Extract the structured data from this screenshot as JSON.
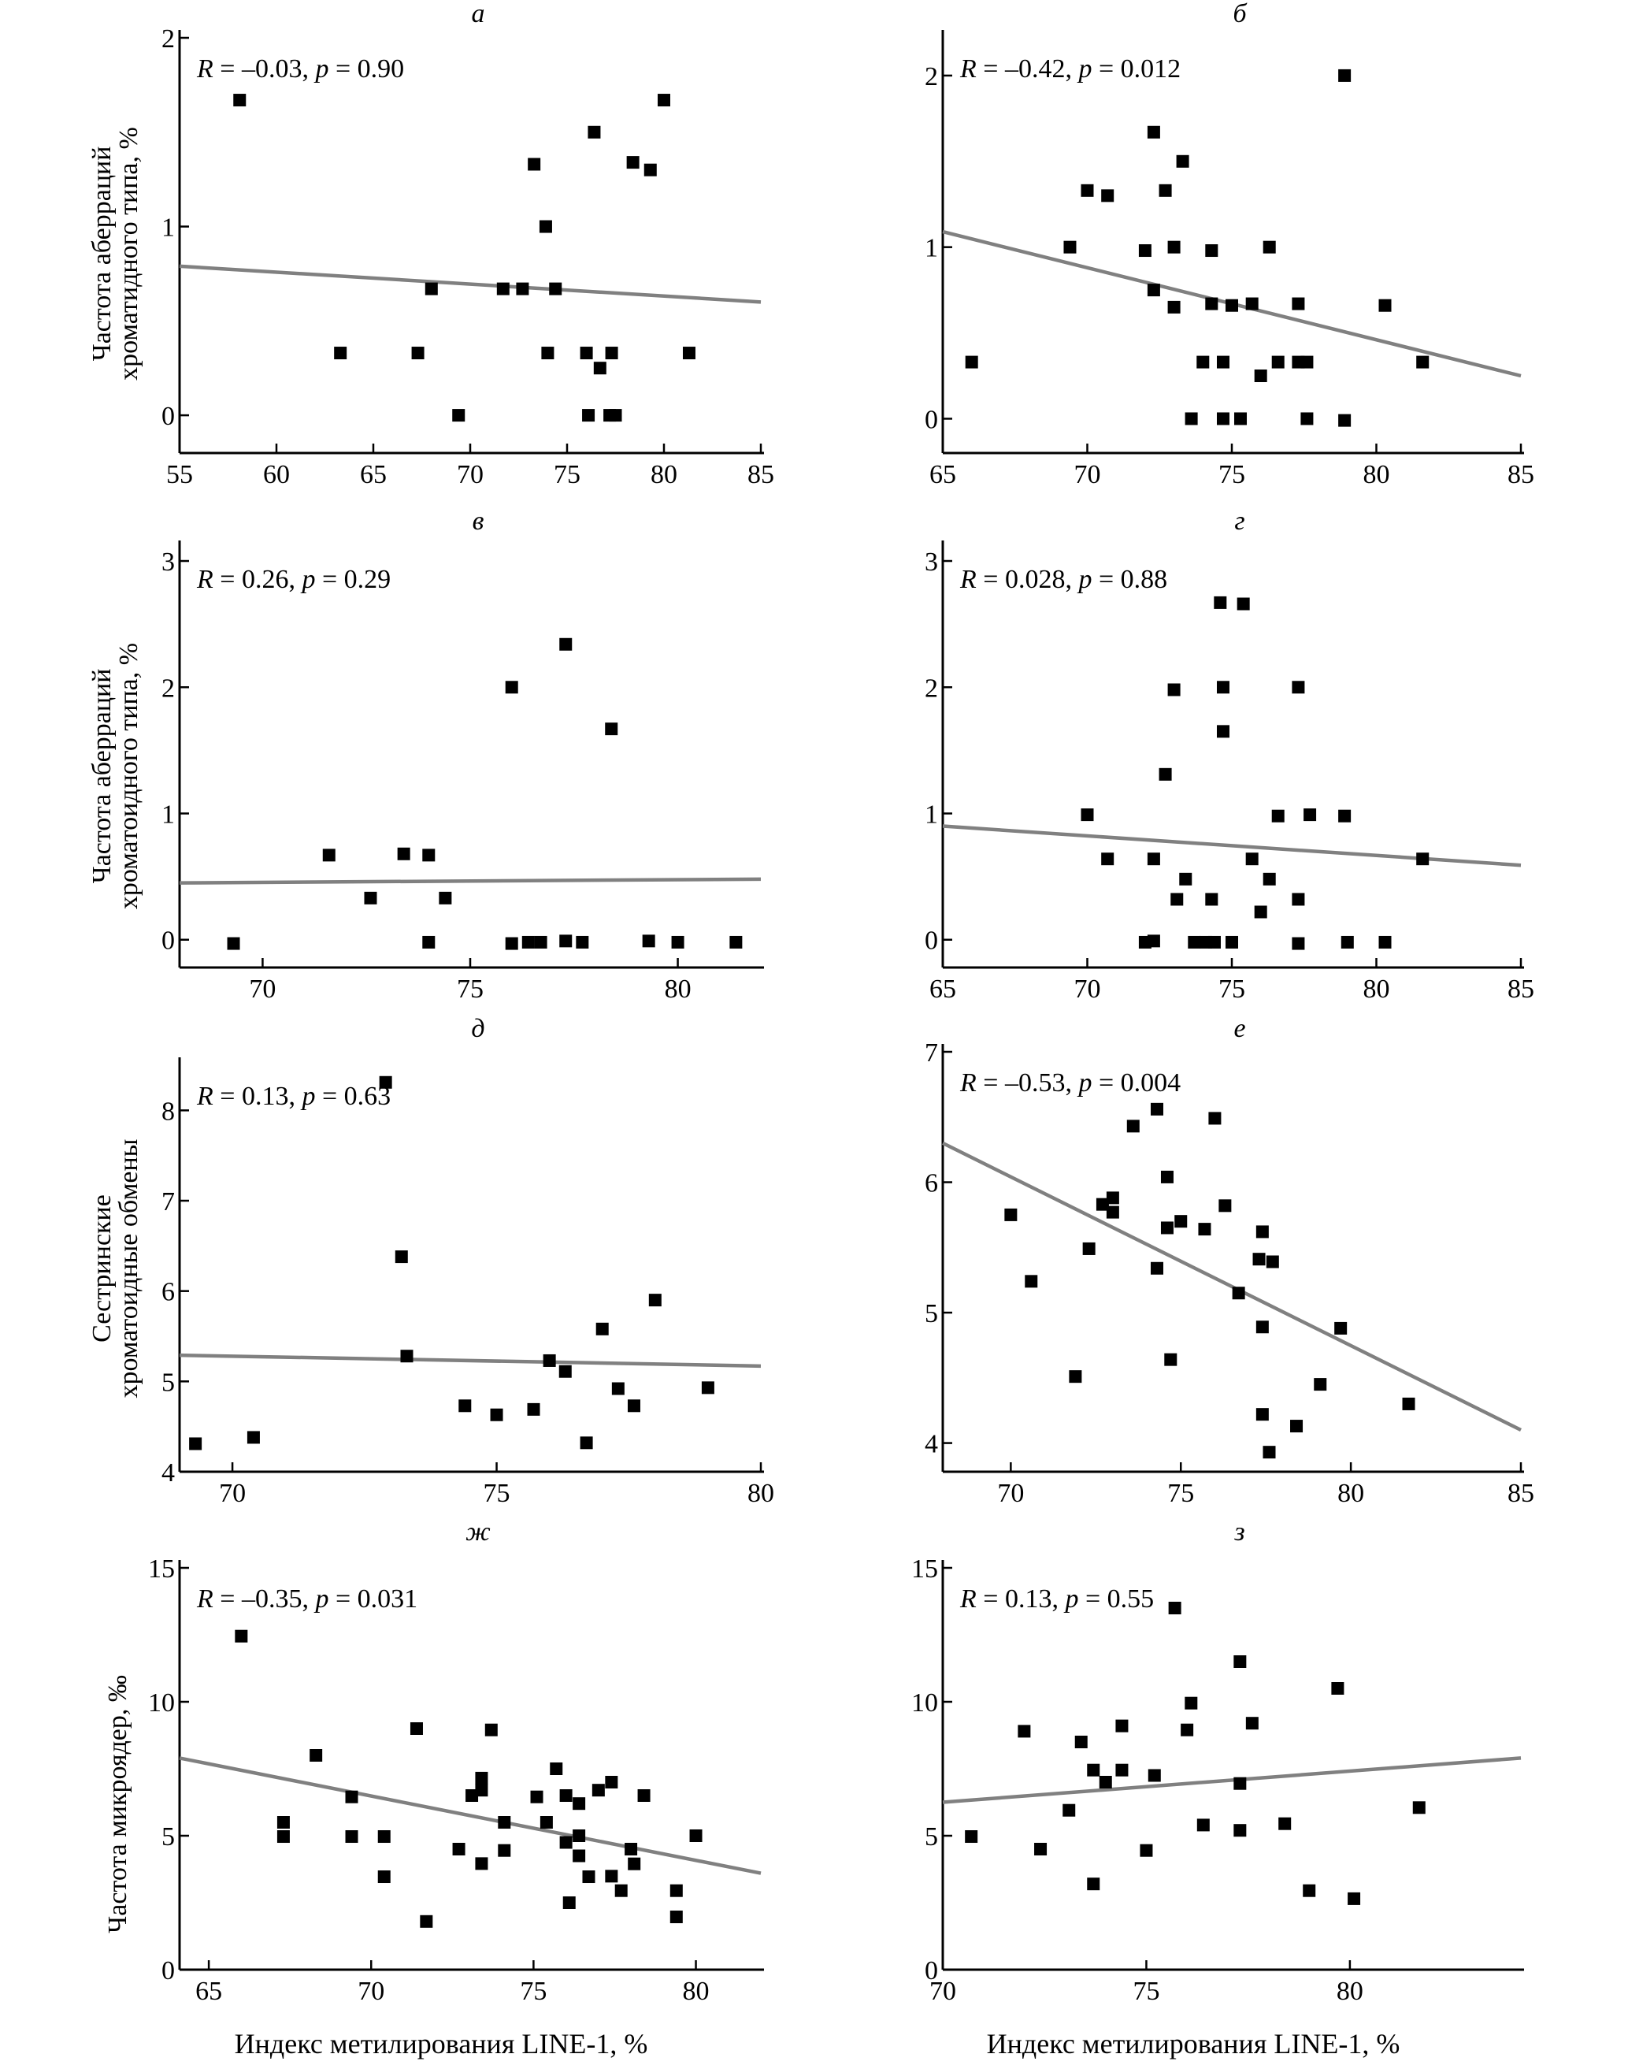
{
  "figure": {
    "xlabel": "Индекс метилирования LINE-1, %",
    "marker": "square",
    "marker_color": "#000000",
    "regression_color": "#808080"
  },
  "ylabels": {
    "row1": [
      "Частота  аберраций",
      "хроматидного типа, %"
    ],
    "row2": [
      "Частота  аберраций",
      "хроматоидного типа, %"
    ],
    "row3": [
      "Сестринские",
      "хроматоидные обмены"
    ],
    "row4": [
      "Частота микроядер, ‰"
    ]
  },
  "chart_data": [
    {
      "id": "a",
      "letter": "а",
      "type": "scatter",
      "stat": {
        "R": "–0.03",
        "p": "0.90"
      },
      "xlim": [
        55,
        85
      ],
      "xticks": [
        55,
        60,
        65,
        70,
        75,
        80,
        85
      ],
      "ylim": [
        -0.2,
        2.0
      ],
      "yticks": [
        0,
        1,
        2
      ],
      "regression": {
        "x": [
          55,
          85
        ],
        "y": [
          0.79,
          0.6
        ]
      },
      "points": [
        [
          58.1,
          1.67
        ],
        [
          63.3,
          0.33
        ],
        [
          67.3,
          0.33
        ],
        [
          68.0,
          0.67
        ],
        [
          69.4,
          0.0
        ],
        [
          71.7,
          0.67
        ],
        [
          72.7,
          0.67
        ],
        [
          73.3,
          1.33
        ],
        [
          73.9,
          1.0
        ],
        [
          74.0,
          0.33
        ],
        [
          74.4,
          0.67
        ],
        [
          76.0,
          0.33
        ],
        [
          76.1,
          0.0
        ],
        [
          76.4,
          1.5
        ],
        [
          76.7,
          0.25
        ],
        [
          77.3,
          0.33
        ],
        [
          77.2,
          0.0
        ],
        [
          77.5,
          0.0
        ],
        [
          78.4,
          1.34
        ],
        [
          79.3,
          1.3
        ],
        [
          80.0,
          1.67
        ],
        [
          81.3,
          0.33
        ]
      ]
    },
    {
      "id": "b",
      "letter": "б",
      "type": "scatter",
      "stat": {
        "R": "–0.42",
        "p": "0.012"
      },
      "xlim": [
        65,
        85
      ],
      "xticks": [
        65,
        70,
        75,
        80,
        85
      ],
      "ylim": [
        -0.2,
        2.22
      ],
      "yticks": [
        0,
        1,
        2
      ],
      "regression": {
        "x": [
          65,
          85
        ],
        "y": [
          1.09,
          0.25
        ]
      },
      "points": [
        [
          66.0,
          0.33
        ],
        [
          69.4,
          1.0
        ],
        [
          70.0,
          1.33
        ],
        [
          70.7,
          1.3
        ],
        [
          72.0,
          0.98
        ],
        [
          72.3,
          1.67
        ],
        [
          72.3,
          0.75
        ],
        [
          72.7,
          1.33
        ],
        [
          73.0,
          1.0
        ],
        [
          73.0,
          0.65
        ],
        [
          73.3,
          1.5
        ],
        [
          73.6,
          0.0
        ],
        [
          74.0,
          0.33
        ],
        [
          74.3,
          0.98
        ],
        [
          74.3,
          0.67
        ],
        [
          74.7,
          0.33
        ],
        [
          74.7,
          0.0
        ],
        [
          75.0,
          0.66
        ],
        [
          75.3,
          0.0
        ],
        [
          75.7,
          0.67
        ],
        [
          76.0,
          0.25
        ],
        [
          76.3,
          1.0
        ],
        [
          76.6,
          0.33
        ],
        [
          77.3,
          0.67
        ],
        [
          77.3,
          0.33
        ],
        [
          77.6,
          0.33
        ],
        [
          77.6,
          0.0
        ],
        [
          78.9,
          2.0
        ],
        [
          78.9,
          -0.01
        ],
        [
          80.3,
          0.66
        ],
        [
          81.6,
          0.33
        ]
      ]
    },
    {
      "id": "v",
      "letter": "в",
      "type": "scatter",
      "stat": {
        "R": "0.26",
        "p": "0.29"
      },
      "xlim": [
        68,
        82
      ],
      "xticks": [
        70,
        75,
        80
      ],
      "ylim": [
        -0.22,
        3.1
      ],
      "yticks": [
        0,
        1,
        2,
        3
      ],
      "regression": {
        "x": [
          68,
          82
        ],
        "y": [
          0.45,
          0.48
        ]
      },
      "points": [
        [
          69.3,
          -0.03
        ],
        [
          71.6,
          0.67
        ],
        [
          72.6,
          0.33
        ],
        [
          73.4,
          0.68
        ],
        [
          74.0,
          0.67
        ],
        [
          74.0,
          -0.02
        ],
        [
          74.4,
          0.33
        ],
        [
          76.0,
          2.0
        ],
        [
          76.0,
          -0.03
        ],
        [
          76.4,
          -0.02
        ],
        [
          76.7,
          -0.02
        ],
        [
          77.3,
          2.34
        ],
        [
          77.3,
          -0.01
        ],
        [
          77.7,
          -0.02
        ],
        [
          78.4,
          1.67
        ],
        [
          79.3,
          -0.01
        ],
        [
          80.0,
          -0.02
        ],
        [
          81.4,
          -0.02
        ]
      ]
    },
    {
      "id": "g",
      "letter": "г",
      "type": "scatter",
      "stat": {
        "R": "0.028",
        "p": "0.88"
      },
      "xlim": [
        65,
        85
      ],
      "xticks": [
        65,
        70,
        75,
        80,
        85
      ],
      "ylim": [
        -0.22,
        3.1
      ],
      "yticks": [
        0,
        1,
        2,
        3
      ],
      "regression": {
        "x": [
          65,
          85
        ],
        "y": [
          0.9,
          0.59
        ]
      },
      "points": [
        [
          70.0,
          0.99
        ],
        [
          70.7,
          0.64
        ],
        [
          72.0,
          -0.02
        ],
        [
          72.3,
          0.64
        ],
        [
          72.3,
          -0.01
        ],
        [
          72.7,
          1.31
        ],
        [
          73.0,
          1.98
        ],
        [
          73.1,
          0.32
        ],
        [
          73.4,
          0.48
        ],
        [
          73.7,
          -0.02
        ],
        [
          74.1,
          -0.02
        ],
        [
          74.3,
          0.32
        ],
        [
          74.4,
          -0.02
        ],
        [
          74.6,
          2.67
        ],
        [
          74.7,
          2.0
        ],
        [
          74.7,
          1.65
        ],
        [
          75.0,
          -0.02
        ],
        [
          75.4,
          2.66
        ],
        [
          75.7,
          0.64
        ],
        [
          76.0,
          0.22
        ],
        [
          76.3,
          0.48
        ],
        [
          76.6,
          0.98
        ],
        [
          77.3,
          2.0
        ],
        [
          77.3,
          0.32
        ],
        [
          77.3,
          -0.03
        ],
        [
          77.7,
          0.99
        ],
        [
          78.9,
          0.98
        ],
        [
          79.0,
          -0.02
        ],
        [
          80.3,
          -0.02
        ],
        [
          81.6,
          0.64
        ]
      ]
    },
    {
      "id": "d",
      "letter": "д",
      "type": "scatter",
      "stat": {
        "R": "0.13",
        "p": "0.63"
      },
      "xlim": [
        69,
        80
      ],
      "xticks": [
        70,
        75,
        80
      ],
      "ylim": [
        4,
        8.5
      ],
      "yticks": [
        4,
        5,
        6,
        7,
        8
      ],
      "regression": {
        "x": [
          69,
          80
        ],
        "y": [
          5.29,
          5.17
        ]
      },
      "points": [
        [
          69.3,
          4.31
        ],
        [
          70.4,
          4.38
        ],
        [
          72.9,
          8.31
        ],
        [
          73.2,
          6.38
        ],
        [
          73.3,
          5.28
        ],
        [
          74.4,
          4.73
        ],
        [
          75.0,
          4.63
        ],
        [
          75.7,
          4.69
        ],
        [
          76.0,
          5.23
        ],
        [
          76.3,
          5.11
        ],
        [
          76.7,
          4.32
        ],
        [
          77.0,
          5.58
        ],
        [
          77.3,
          4.92
        ],
        [
          77.6,
          4.73
        ],
        [
          78.0,
          5.9
        ],
        [
          79.0,
          4.93
        ]
      ]
    },
    {
      "id": "e",
      "letter": "е",
      "type": "scatter",
      "stat": {
        "R": "–0.53",
        "p": "0.004"
      },
      "xlim": [
        68,
        85
      ],
      "xticks": [
        70,
        75,
        80,
        85
      ],
      "ylim": [
        3.78,
        7.0
      ],
      "yticks": [
        4,
        5,
        6,
        7
      ],
      "regression": {
        "x": [
          68,
          85
        ],
        "y": [
          6.3,
          4.1
        ]
      },
      "points": [
        [
          70.0,
          5.75
        ],
        [
          70.6,
          5.24
        ],
        [
          71.9,
          4.51
        ],
        [
          72.3,
          5.49
        ],
        [
          72.7,
          5.83
        ],
        [
          73.0,
          5.88
        ],
        [
          73.0,
          5.77
        ],
        [
          73.6,
          6.43
        ],
        [
          74.3,
          5.34
        ],
        [
          74.3,
          6.56
        ],
        [
          74.6,
          6.04
        ],
        [
          74.6,
          5.65
        ],
        [
          74.7,
          4.64
        ],
        [
          75.0,
          5.7
        ],
        [
          75.7,
          5.64
        ],
        [
          76.0,
          6.49
        ],
        [
          76.3,
          5.82
        ],
        [
          76.7,
          5.15
        ],
        [
          77.3,
          5.41
        ],
        [
          77.4,
          5.62
        ],
        [
          77.4,
          4.89
        ],
        [
          77.4,
          4.22
        ],
        [
          77.6,
          3.93
        ],
        [
          77.7,
          5.39
        ],
        [
          78.4,
          4.13
        ],
        [
          79.1,
          4.45
        ],
        [
          79.7,
          4.88
        ],
        [
          81.7,
          4.3
        ]
      ]
    },
    {
      "id": "zh",
      "letter": "ж",
      "type": "scatter",
      "stat": {
        "R": "–0.35",
        "p": "0.031"
      },
      "xlim": [
        64.1,
        82
      ],
      "xticks": [
        65,
        70,
        75,
        80
      ],
      "ylim": [
        0,
        15
      ],
      "yticks": [
        0,
        5,
        10,
        15
      ],
      "regression": {
        "x": [
          64.1,
          82
        ],
        "y": [
          7.9,
          3.6
        ]
      },
      "points": [
        [
          66.0,
          12.45
        ],
        [
          67.3,
          5.5
        ],
        [
          67.3,
          4.97
        ],
        [
          68.3,
          8.0
        ],
        [
          69.4,
          6.45
        ],
        [
          69.4,
          4.97
        ],
        [
          70.4,
          4.97
        ],
        [
          70.4,
          3.47
        ],
        [
          71.4,
          9.0
        ],
        [
          71.7,
          1.8
        ],
        [
          72.7,
          4.5
        ],
        [
          73.1,
          6.5
        ],
        [
          73.4,
          7.15
        ],
        [
          73.4,
          6.7
        ],
        [
          73.4,
          3.96
        ],
        [
          73.7,
          8.95
        ],
        [
          74.1,
          5.5
        ],
        [
          74.1,
          4.45
        ],
        [
          75.1,
          6.45
        ],
        [
          75.4,
          5.5
        ],
        [
          75.7,
          7.5
        ],
        [
          76.0,
          6.5
        ],
        [
          76.0,
          4.75
        ],
        [
          76.1,
          2.5
        ],
        [
          76.4,
          6.2
        ],
        [
          76.4,
          5.0
        ],
        [
          76.4,
          4.25
        ],
        [
          76.7,
          3.47
        ],
        [
          77.0,
          6.7
        ],
        [
          77.4,
          7.0
        ],
        [
          77.4,
          3.49
        ],
        [
          77.7,
          2.95
        ],
        [
          78.0,
          4.5
        ],
        [
          78.1,
          3.95
        ],
        [
          78.4,
          6.5
        ],
        [
          79.4,
          2.95
        ],
        [
          79.4,
          1.97
        ],
        [
          80.0,
          5.0
        ]
      ]
    },
    {
      "id": "z",
      "letter": "з",
      "type": "scatter",
      "stat": {
        "R": "0.13",
        "p": "0.55"
      },
      "xlim": [
        70,
        84.2
      ],
      "xticks": [
        70,
        75,
        80
      ],
      "ylim": [
        0,
        15
      ],
      "yticks": [
        0,
        5,
        10,
        15
      ],
      "regression": {
        "x": [
          70,
          84.2
        ],
        "y": [
          6.25,
          7.9
        ]
      },
      "points": [
        [
          70.7,
          4.97
        ],
        [
          72.0,
          8.9
        ],
        [
          72.4,
          4.5
        ],
        [
          73.1,
          5.95
        ],
        [
          73.4,
          8.5
        ],
        [
          73.7,
          7.45
        ],
        [
          73.7,
          3.2
        ],
        [
          74.0,
          7.0
        ],
        [
          74.4,
          9.1
        ],
        [
          74.4,
          7.45
        ],
        [
          75.0,
          4.45
        ],
        [
          75.2,
          7.25
        ],
        [
          75.7,
          13.5
        ],
        [
          76.0,
          8.95
        ],
        [
          76.1,
          9.95
        ],
        [
          76.4,
          5.4
        ],
        [
          77.3,
          11.5
        ],
        [
          77.3,
          6.95
        ],
        [
          77.3,
          5.2
        ],
        [
          77.6,
          9.2
        ],
        [
          78.4,
          5.45
        ],
        [
          79.0,
          2.95
        ],
        [
          79.7,
          10.5
        ],
        [
          80.1,
          2.65
        ],
        [
          81.7,
          6.05
        ]
      ]
    }
  ]
}
